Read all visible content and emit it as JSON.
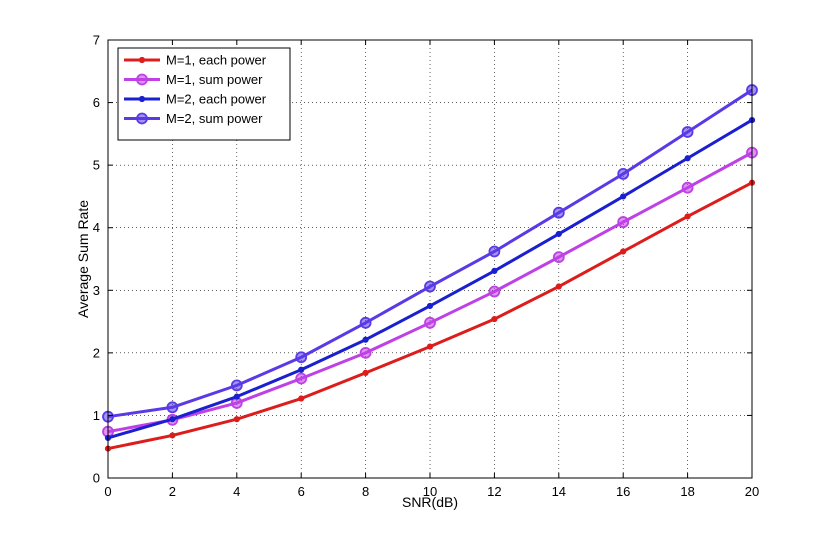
{
  "chart_data": {
    "type": "line",
    "title": "",
    "xlabel": "SNR(dB)",
    "ylabel": "Average Sum Rate",
    "xlim": [
      0,
      20
    ],
    "ylim": [
      0,
      7
    ],
    "xticks": [
      0,
      2,
      4,
      6,
      8,
      10,
      12,
      14,
      16,
      18,
      20
    ],
    "yticks": [
      0,
      1,
      2,
      3,
      4,
      5,
      6,
      7
    ],
    "grid": true,
    "legend_position": "top-left",
    "x": [
      0,
      2,
      4,
      6,
      8,
      10,
      12,
      14,
      16,
      18,
      20
    ],
    "series": [
      {
        "name": "M=1, each power",
        "color": "#dd1c1c",
        "marker": "small-dot",
        "values": [
          0.47,
          0.68,
          0.94,
          1.27,
          1.68,
          2.1,
          2.54,
          3.06,
          3.62,
          4.18,
          4.72
        ]
      },
      {
        "name": "M=1, sum power",
        "color": "#bf40e6",
        "marker": "large-circle",
        "values": [
          0.74,
          0.93,
          1.2,
          1.59,
          2.0,
          2.48,
          2.98,
          3.53,
          4.09,
          4.64,
          5.2
        ]
      },
      {
        "name": "M=2, each power",
        "color": "#1a1fd0",
        "marker": "small-dot",
        "values": [
          0.64,
          0.94,
          1.3,
          1.73,
          2.21,
          2.75,
          3.31,
          3.9,
          4.5,
          5.11,
          5.72
        ]
      },
      {
        "name": "M=2, sum power",
        "color": "#5a3ae6",
        "marker": "large-circle",
        "values": [
          0.98,
          1.13,
          1.48,
          1.93,
          2.48,
          3.06,
          3.62,
          4.24,
          4.86,
          5.53,
          6.2
        ]
      }
    ]
  }
}
